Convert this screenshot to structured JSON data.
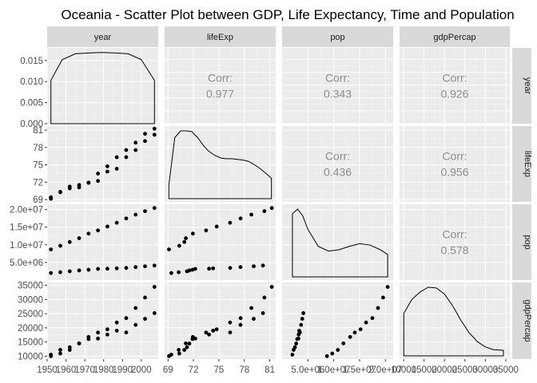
{
  "title": "Oceania - Scatter Plot between GDP, Life Expectancy, Time and Population",
  "chart_data": {
    "type": "scatter",
    "kind": "scatterplot-matrix",
    "variables": [
      "year",
      "lifeExp",
      "pop",
      "gdpPercap"
    ],
    "lower_panels": "scatter",
    "diagonal_panels": "density",
    "upper_panels": "correlation",
    "correlation_label": "Corr:",
    "correlations": [
      {
        "row": "lifeExp",
        "col": "year",
        "value": "0.977"
      },
      {
        "row": "pop",
        "col": "year",
        "value": "0.343"
      },
      {
        "row": "gdpPercap",
        "col": "year",
        "value": "0.926"
      },
      {
        "row": "pop",
        "col": "lifeExp",
        "value": "0.436"
      },
      {
        "row": "gdpPercap",
        "col": "lifeExp",
        "value": "0.956"
      },
      {
        "row": "gdpPercap",
        "col": "pop",
        "value": "0.578"
      }
    ],
    "axes": {
      "year": {
        "range": [
          1950,
          2009
        ],
        "ticks": [
          1950,
          1960,
          1970,
          1980,
          1990,
          2000
        ],
        "tick_labels": [
          "1950",
          "1960",
          "1970",
          "1980",
          "1990",
          "2000"
        ]
      },
      "lifeExp": {
        "range": [
          68.6,
          81.7
        ],
        "ticks": [
          69,
          72,
          75,
          78,
          81
        ],
        "tick_labels": [
          "69",
          "72",
          "75",
          "78",
          "81"
        ]
      },
      "pop": {
        "range": [
          0,
          21500000
        ],
        "ticks": [
          5000000,
          10000000,
          15000000,
          20000000
        ],
        "tick_labels": [
          "5.0e+06",
          "1.0e+07",
          "1.5e+07",
          "2.0e+07"
        ]
      },
      "gdpPercap": {
        "range": [
          9000,
          36000
        ],
        "ticks": [
          10000,
          15000,
          20000,
          25000,
          30000,
          35000
        ],
        "tick_labels": [
          "10000",
          "15000",
          "20000",
          "25000",
          "30000",
          "35000"
        ]
      }
    },
    "diagonal_axis": {
      "range": [
        0,
        0.018
      ],
      "ticks": [
        0,
        0.005,
        0.01,
        0.015
      ],
      "tick_labels": [
        "0.000",
        "0.005",
        "0.010",
        "0.015"
      ]
    },
    "series": [
      {
        "year": [
          1952,
          1957,
          1962,
          1967,
          1972,
          1977,
          1982,
          1987,
          1992,
          1997,
          2002,
          2007
        ],
        "lifeExp": [
          69.12,
          70.33,
          70.93,
          71.1,
          71.93,
          73.49,
          74.74,
          76.32,
          77.56,
          78.83,
          80.37,
          81.24
        ],
        "pop": [
          8691212,
          9712569,
          10794968,
          11872264,
          13177000,
          14074100,
          15184200,
          16257249,
          17481977,
          18565243,
          19546792,
          20434176
        ],
        "gdpPercap": [
          10040,
          10950,
          12217,
          14526,
          16789,
          18334,
          19477,
          21889,
          23425,
          26998,
          30688,
          34435
        ]
      },
      {
        "year": [
          1952,
          1957,
          1962,
          1967,
          1972,
          1977,
          1982,
          1987,
          1992,
          1997,
          2002,
          2007
        ],
        "lifeExp": [
          69.39,
          70.26,
          71.24,
          71.52,
          71.89,
          72.22,
          73.84,
          74.32,
          76.33,
          77.55,
          79.11,
          80.2
        ],
        "pop": [
          1994794,
          2229407,
          2488550,
          2728150,
          2929100,
          3164900,
          3210650,
          3317166,
          3437674,
          3676187,
          3908037,
          4115771
        ],
        "gdpPercap": [
          10557,
          12247,
          13176,
          14463,
          16046,
          16234,
          17632,
          19007,
          18363,
          21050,
          23190,
          25185
        ]
      }
    ],
    "density_panels": {
      "year": {
        "x": [
          1952,
          1958,
          1965,
          1972,
          1979,
          1986,
          1993,
          2000,
          2007
        ],
        "y": [
          0.0103,
          0.0152,
          0.0166,
          0.0168,
          0.0169,
          0.0168,
          0.0166,
          0.0152,
          0.0103
        ]
      },
      "lifeExp": {
        "x": [
          69.1,
          69.8,
          70.5,
          71.2,
          71.8,
          72.5,
          73.2,
          73.8,
          74.5,
          75.2,
          75.8,
          76.5,
          77.2,
          77.8,
          78.5,
          79.2,
          79.8,
          80.5,
          81.2
        ],
        "y": [
          0.2,
          0.9,
          1.0,
          1.0,
          0.99,
          0.9,
          0.78,
          0.7,
          0.64,
          0.6,
          0.59,
          0.59,
          0.58,
          0.57,
          0.55,
          0.5,
          0.45,
          0.38,
          0.3
        ]
      },
      "pop": {
        "x": [
          2000000,
          3000000,
          4000000,
          5000000,
          7000000,
          9000000,
          11000000,
          13000000,
          15000000,
          17000000,
          19000000,
          20434176
        ],
        "y": [
          0.93,
          1.0,
          0.9,
          0.7,
          0.45,
          0.38,
          0.4,
          0.45,
          0.49,
          0.47,
          0.4,
          0.33
        ]
      },
      "gdpPercap": {
        "x": [
          10040,
          12000,
          14000,
          16000,
          18000,
          20000,
          22000,
          24000,
          26000,
          28000,
          30000,
          32000,
          34435
        ],
        "y": [
          0.62,
          0.82,
          0.93,
          1.0,
          0.99,
          0.9,
          0.73,
          0.52,
          0.34,
          0.21,
          0.13,
          0.09,
          0.08
        ]
      }
    },
    "grid": true
  },
  "colors": {
    "panel_bg": "#ebebeb",
    "grid_major": "#ffffff",
    "strip_bg": "#d9d9d9",
    "point": "#000000",
    "corr_text": "#8c8c8c",
    "axis_text": "#4d4d4d",
    "strip_text": "#1a1a1a"
  }
}
